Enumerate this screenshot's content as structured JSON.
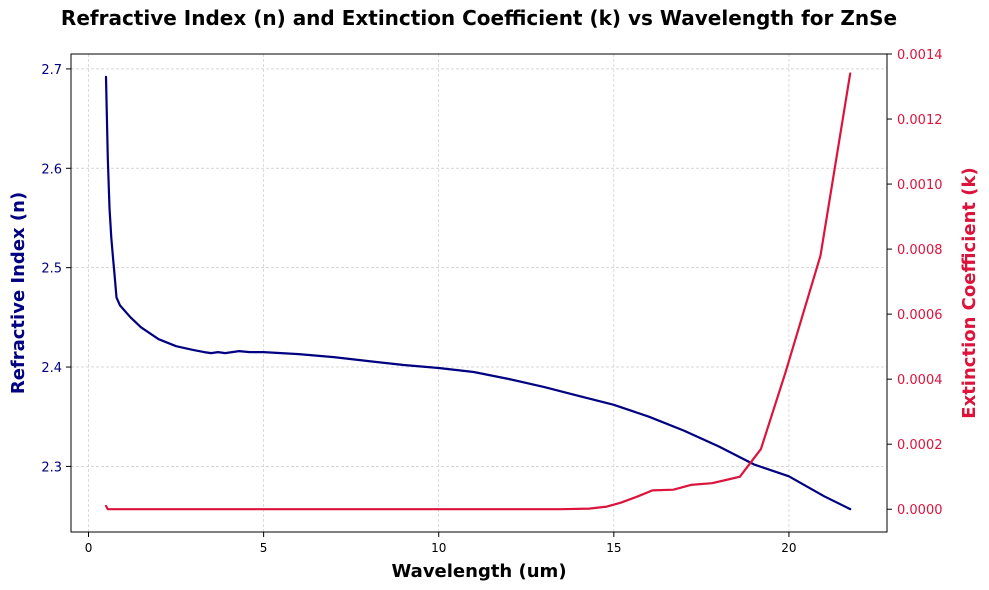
{
  "chart_data": {
    "type": "line",
    "title": "Refractive Index (n) and Extinction Coefficient (k) vs Wavelength for ZnSe",
    "xlabel": "Wavelength (um)",
    "ylabel_left": "Refractive Index (n)",
    "ylabel_right": "Extinction Coefficient (k)",
    "xlim": [
      -0.5,
      22.8
    ],
    "ylim_left": [
      2.234,
      2.715
    ],
    "ylim_right": [
      -7e-05,
      0.0014
    ],
    "x_ticks": [
      0,
      5,
      10,
      15,
      20
    ],
    "y_left_ticks": [
      "2.3",
      "2.4",
      "2.5",
      "2.6",
      "2.7"
    ],
    "y_left_tick_values": [
      2.3,
      2.4,
      2.5,
      2.6,
      2.7
    ],
    "y_right_ticks": [
      "0.0000",
      "0.0002",
      "0.0004",
      "0.0006",
      "0.0008",
      "0.0010",
      "0.0012",
      "0.0014"
    ],
    "y_right_tick_values": [
      0,
      0.0002,
      0.0004,
      0.0006,
      0.0008,
      0.001,
      0.0012,
      0.0014
    ],
    "grid": true,
    "colors": {
      "n": "#000080",
      "k": "#dc143c"
    },
    "series": [
      {
        "axis": "left",
        "x": [
          0.5,
          0.55,
          0.6,
          0.65,
          0.7,
          0.75,
          0.8,
          0.9,
          1.0,
          1.2,
          1.5,
          2.0,
          2.5,
          3.0,
          3.3,
          3.5,
          3.7,
          3.9,
          4.1,
          4.3,
          4.6,
          5.0,
          5.5,
          6.0,
          7.0,
          8.0,
          9.0,
          10.0,
          11.0,
          12.0,
          13.0,
          14.0,
          15.0,
          16.0,
          17.0,
          18.0,
          19.0,
          20.0,
          21.0,
          21.75
        ],
        "values": [
          2.692,
          2.61,
          2.56,
          2.53,
          2.51,
          2.49,
          2.47,
          2.462,
          2.458,
          2.45,
          2.44,
          2.428,
          2.421,
          2.417,
          2.415,
          2.414,
          2.415,
          2.414,
          2.415,
          2.416,
          2.415,
          2.415,
          2.414,
          2.413,
          2.41,
          2.406,
          2.402,
          2.399,
          2.395,
          2.388,
          2.38,
          2.371,
          2.362,
          2.35,
          2.336,
          2.32,
          2.302,
          2.29,
          2.27,
          2.257
        ]
      },
      {
        "axis": "right",
        "x": [
          0.5,
          0.55,
          0.6,
          1.0,
          2.0,
          5.0,
          10.0,
          13.5,
          14.3,
          14.8,
          15.2,
          15.7,
          16.1,
          16.7,
          17.2,
          17.8,
          18.2,
          18.6,
          19.2,
          19.9,
          20.9,
          21.75
        ],
        "values": [
          1e-05,
          0.0,
          0.0,
          0.0,
          0.0,
          0.0,
          0.0,
          0.0,
          2e-06,
          8e-06,
          2e-05,
          4e-05,
          5.8e-05,
          6e-05,
          7.5e-05,
          8e-05,
          9e-05,
          0.0001,
          0.000185,
          0.00042,
          0.00078,
          0.00134
        ]
      }
    ]
  }
}
